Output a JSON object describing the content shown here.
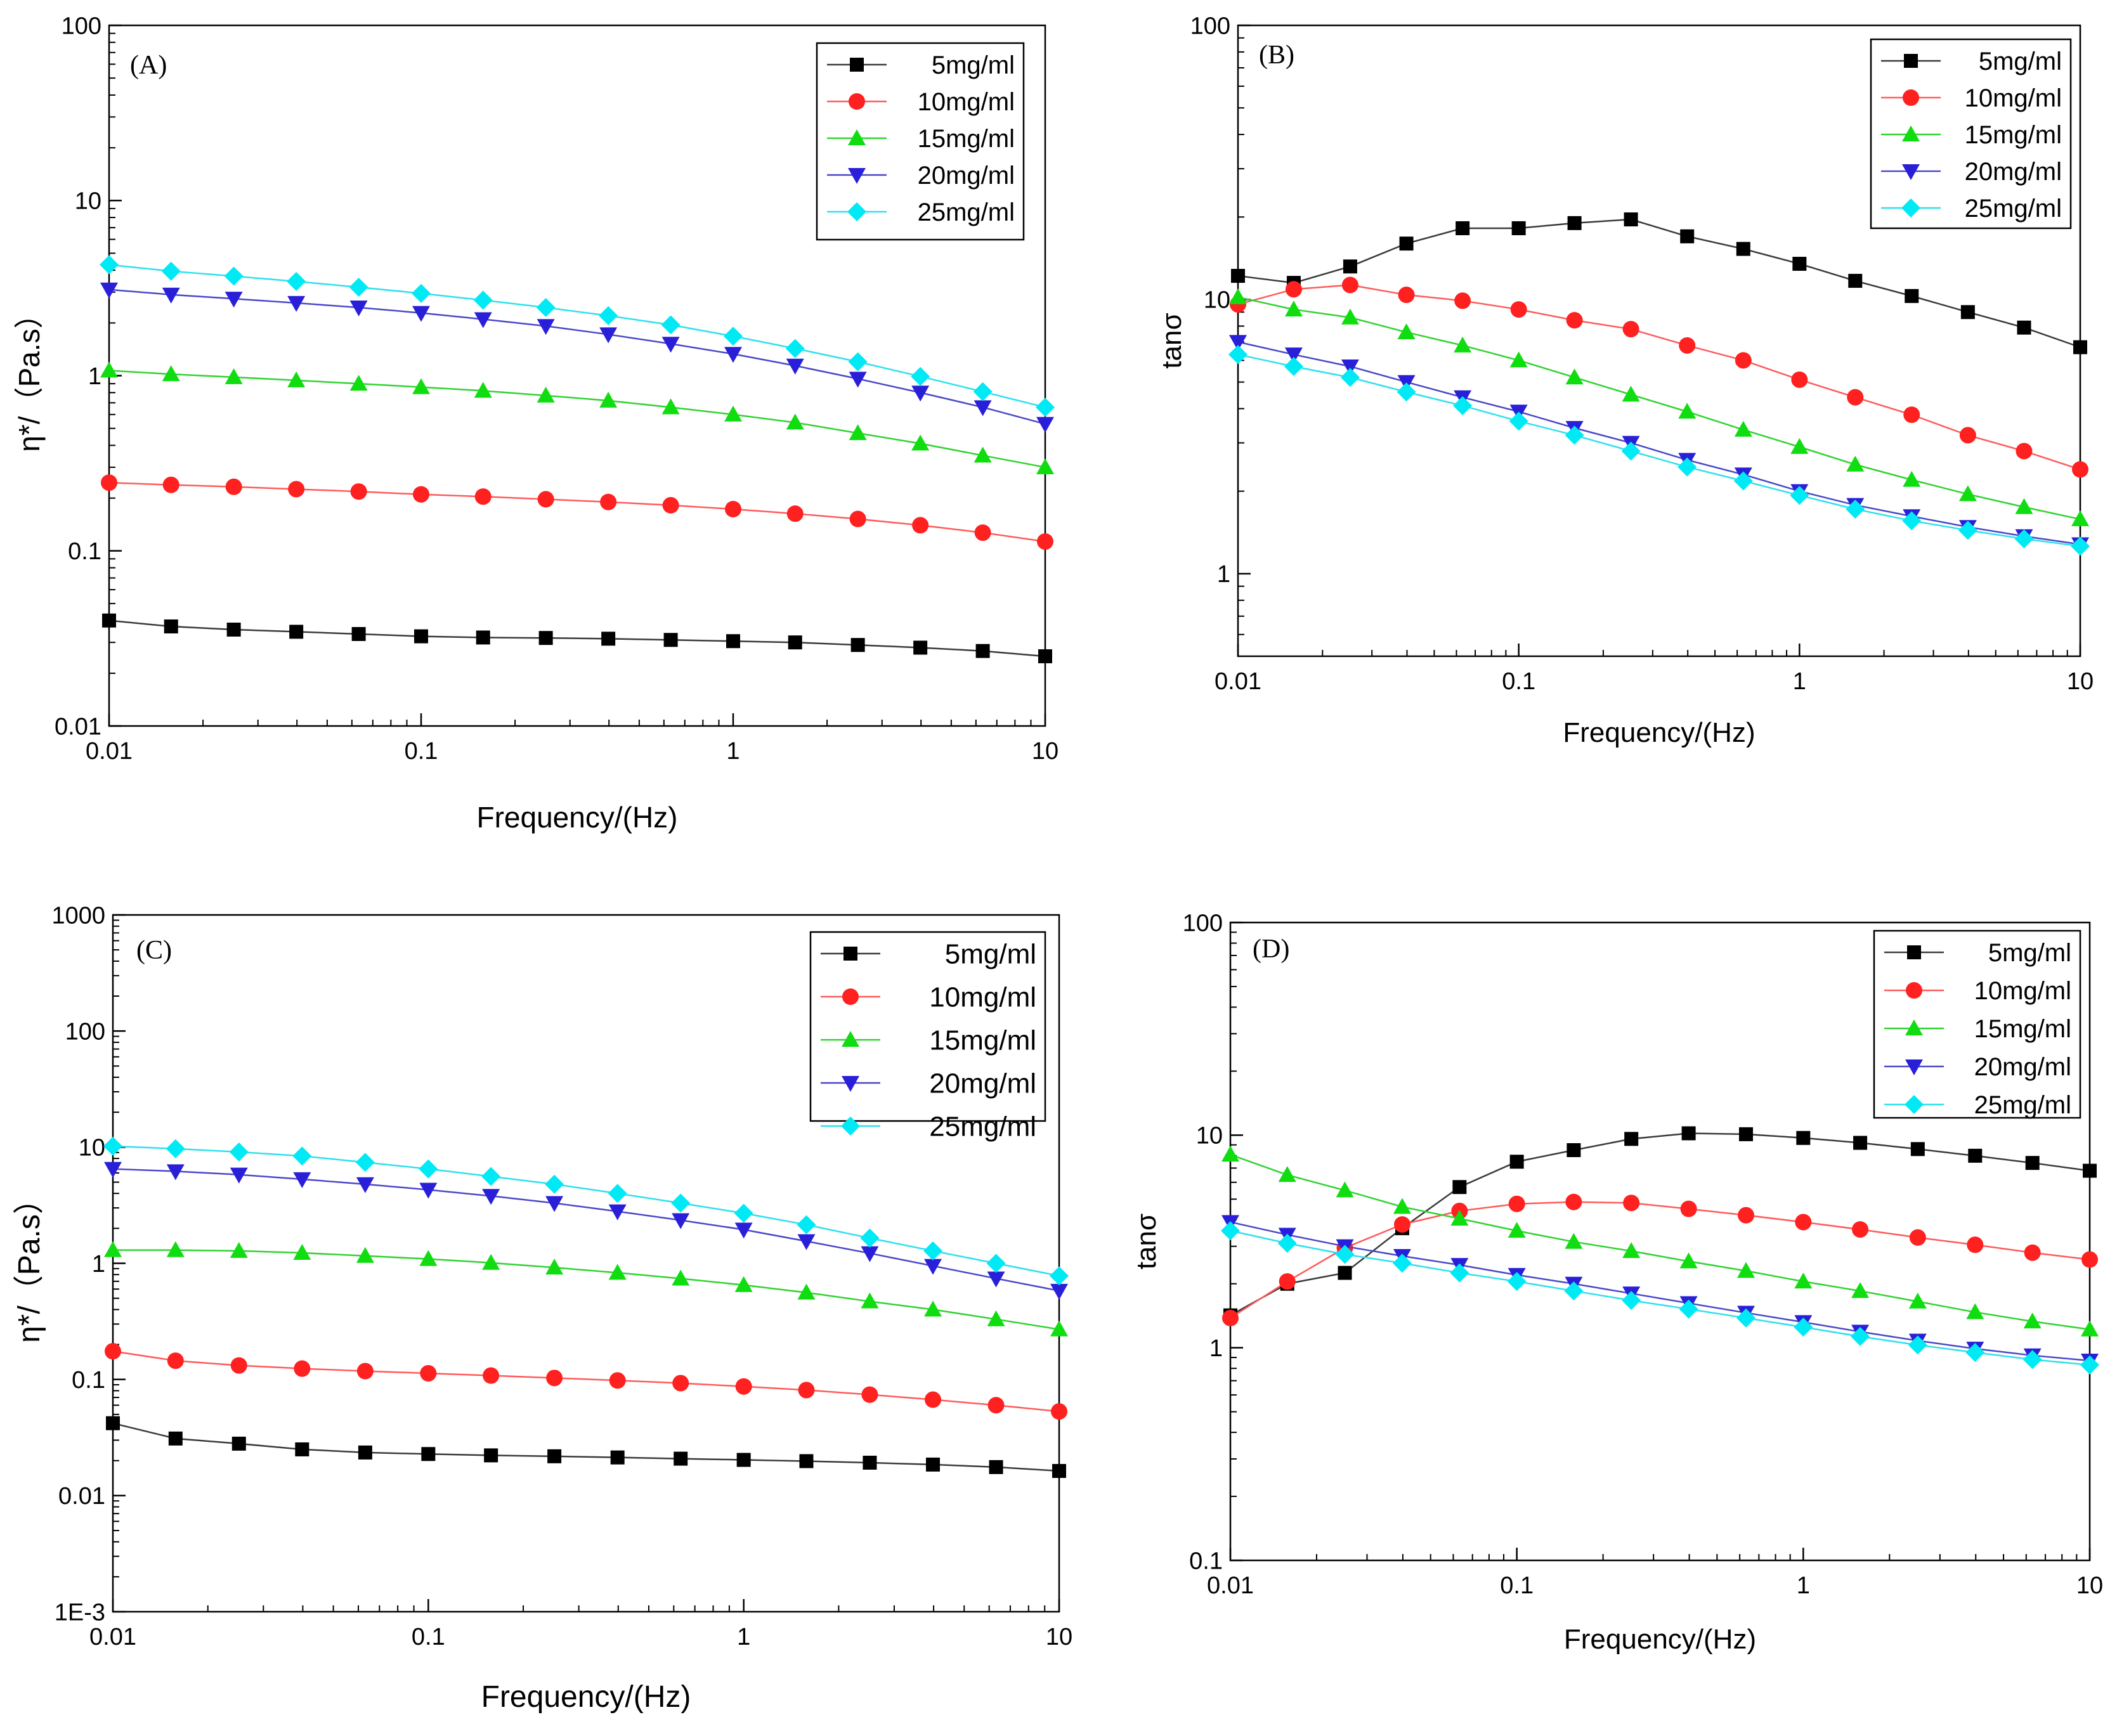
{
  "chart_data": [
    {
      "type": "line",
      "panel_label": "(A)",
      "xscale": "log",
      "yscale": "log",
      "xlabel": "Frequency/(Hz)",
      "ylabel": "η*/（Pa.s）",
      "xlim": [
        0.01,
        10
      ],
      "ylim": [
        0.01,
        100
      ],
      "xticks": [
        0.01,
        0.1,
        1,
        10
      ],
      "xtick_labels": [
        "0.01",
        "0.1",
        "1",
        "10"
      ],
      "yticks": [
        0.01,
        0.1,
        1,
        10,
        100
      ],
      "ytick_labels": [
        "0.01",
        "0.1",
        "1",
        "10",
        "100"
      ],
      "legend": "top-right",
      "x": [
        0.01,
        0.0158,
        0.0251,
        0.0398,
        0.0631,
        0.1,
        0.158,
        0.251,
        0.398,
        0.631,
        1,
        1.58,
        2.51,
        3.98,
        6.31,
        10
      ],
      "series": [
        {
          "name": "5mg/ml",
          "values": [
            0.04,
            0.037,
            0.0355,
            0.0345,
            0.0335,
            0.0325,
            0.032,
            0.0318,
            0.0315,
            0.031,
            0.0305,
            0.03,
            0.029,
            0.028,
            0.0268,
            0.025
          ]
        },
        {
          "name": "10mg/ml",
          "values": [
            0.245,
            0.238,
            0.232,
            0.225,
            0.218,
            0.21,
            0.204,
            0.197,
            0.19,
            0.182,
            0.173,
            0.163,
            0.152,
            0.14,
            0.127,
            0.113
          ]
        },
        {
          "name": "15mg/ml",
          "values": [
            1.07,
            1.02,
            0.98,
            0.94,
            0.9,
            0.86,
            0.82,
            0.77,
            0.72,
            0.66,
            0.6,
            0.54,
            0.47,
            0.41,
            0.35,
            0.3
          ]
        },
        {
          "name": "20mg/ml",
          "values": [
            3.1,
            2.9,
            2.75,
            2.6,
            2.45,
            2.28,
            2.1,
            1.92,
            1.72,
            1.52,
            1.33,
            1.14,
            0.96,
            0.8,
            0.66,
            0.53
          ]
        },
        {
          "name": "25mg/ml",
          "values": [
            4.3,
            3.95,
            3.7,
            3.45,
            3.2,
            2.95,
            2.7,
            2.45,
            2.2,
            1.95,
            1.68,
            1.43,
            1.2,
            0.99,
            0.81,
            0.66
          ]
        }
      ]
    },
    {
      "type": "line",
      "panel_label": "(B)",
      "xscale": "log",
      "yscale": "log",
      "xlabel": "Frequency/(Hz)",
      "ylabel": "tanσ",
      "xlim": [
        0.01,
        10
      ],
      "ylim": [
        0.5,
        100
      ],
      "xticks": [
        0.01,
        0.1,
        1,
        10
      ],
      "xtick_labels": [
        "0.01",
        "0.1",
        "1",
        "10"
      ],
      "yticks": [
        1,
        10,
        100
      ],
      "ytick_labels": [
        "1",
        "10",
        "100"
      ],
      "legend": "top-right",
      "x": [
        0.01,
        0.0158,
        0.0251,
        0.0398,
        0.0631,
        0.1,
        0.158,
        0.251,
        0.398,
        0.631,
        1,
        1.58,
        2.51,
        3.98,
        6.31,
        10
      ],
      "series": [
        {
          "name": "5mg/ml",
          "values": [
            12.2,
            11.5,
            13.2,
            16,
            18.2,
            18.2,
            19,
            19.6,
            17,
            15.3,
            13.5,
            11.7,
            10.3,
            9,
            7.9,
            6.7
          ]
        },
        {
          "name": "10mg/ml",
          "values": [
            9.6,
            10.9,
            11.3,
            10.4,
            9.9,
            9.2,
            8.4,
            7.8,
            6.8,
            6,
            5.1,
            4.4,
            3.8,
            3.2,
            2.8,
            2.4
          ]
        },
        {
          "name": "15mg/ml",
          "values": [
            10.2,
            9.2,
            8.6,
            7.6,
            6.8,
            6,
            5.2,
            4.5,
            3.9,
            3.35,
            2.9,
            2.5,
            2.2,
            1.95,
            1.75,
            1.58
          ]
        },
        {
          "name": "20mg/ml",
          "values": [
            7,
            6.3,
            5.7,
            5,
            4.4,
            3.9,
            3.4,
            3,
            2.6,
            2.3,
            2,
            1.78,
            1.62,
            1.48,
            1.37,
            1.28
          ]
        },
        {
          "name": "25mg/ml",
          "values": [
            6.3,
            5.7,
            5.2,
            4.6,
            4.1,
            3.6,
            3.2,
            2.8,
            2.45,
            2.18,
            1.93,
            1.72,
            1.56,
            1.44,
            1.34,
            1.26
          ]
        }
      ]
    },
    {
      "type": "line",
      "panel_label": "(C)",
      "xscale": "log",
      "yscale": "log",
      "xlabel": "Frequency/(Hz)",
      "ylabel": "η*/（Pa.s）",
      "xlim": [
        0.01,
        10
      ],
      "ylim": [
        0.001,
        1000
      ],
      "xticks": [
        0.01,
        0.1,
        1,
        10
      ],
      "xtick_labels": [
        "0.01",
        "0.1",
        "1",
        "10"
      ],
      "yticks": [
        0.001,
        0.01,
        0.1,
        1,
        10,
        100,
        1000
      ],
      "ytick_labels": [
        "1E-3",
        "0.01",
        "0.1",
        "1",
        "10",
        "100",
        "1000"
      ],
      "legend": "top-right",
      "x": [
        0.01,
        0.0158,
        0.0251,
        0.0398,
        0.0631,
        0.1,
        0.158,
        0.251,
        0.398,
        0.631,
        1,
        1.58,
        2.51,
        3.98,
        6.31,
        10
      ],
      "series": [
        {
          "name": "5mg/ml",
          "values": [
            0.042,
            0.031,
            0.028,
            0.025,
            0.0235,
            0.0228,
            0.0222,
            0.0218,
            0.0213,
            0.0208,
            0.0203,
            0.0198,
            0.0192,
            0.0185,
            0.0176,
            0.0163
          ]
        },
        {
          "name": "10mg/ml",
          "values": [
            0.175,
            0.145,
            0.132,
            0.124,
            0.118,
            0.113,
            0.108,
            0.103,
            0.098,
            0.093,
            0.087,
            0.081,
            0.074,
            0.067,
            0.06,
            0.053
          ]
        },
        {
          "name": "15mg/ml",
          "values": [
            1.3,
            1.3,
            1.28,
            1.23,
            1.16,
            1.09,
            1.01,
            0.92,
            0.83,
            0.74,
            0.65,
            0.56,
            0.47,
            0.4,
            0.33,
            0.27
          ]
        },
        {
          "name": "20mg/ml",
          "values": [
            6.5,
            6.2,
            5.8,
            5.3,
            4.8,
            4.3,
            3.8,
            3.3,
            2.8,
            2.35,
            1.95,
            1.55,
            1.22,
            0.95,
            0.74,
            0.58
          ]
        },
        {
          "name": "25mg/ml",
          "values": [
            10.2,
            9.7,
            9.1,
            8.4,
            7.4,
            6.5,
            5.6,
            4.8,
            4,
            3.3,
            2.7,
            2.15,
            1.65,
            1.28,
            1,
            0.78
          ]
        }
      ]
    },
    {
      "type": "line",
      "panel_label": "(D)",
      "xscale": "log",
      "yscale": "log",
      "xlabel": "Frequency/(Hz)",
      "ylabel": "tanσ",
      "xlim": [
        0.01,
        10
      ],
      "ylim": [
        0.1,
        100
      ],
      "xticks": [
        0.01,
        0.1,
        1,
        10
      ],
      "xtick_labels": [
        "0.01",
        "0.1",
        "1",
        "10"
      ],
      "yticks": [
        0.1,
        1,
        10,
        100
      ],
      "ytick_labels": [
        "0.1",
        "1",
        "10",
        "100"
      ],
      "legend": "top-right",
      "x": [
        0.01,
        0.0158,
        0.0251,
        0.0398,
        0.0631,
        0.1,
        0.158,
        0.251,
        0.398,
        0.631,
        1,
        1.58,
        2.51,
        3.98,
        6.31,
        10
      ],
      "series": [
        {
          "name": "5mg/ml",
          "values": [
            1.42,
            2,
            2.25,
            3.65,
            5.7,
            7.5,
            8.5,
            9.6,
            10.2,
            10.1,
            9.7,
            9.2,
            8.6,
            8,
            7.4,
            6.8
          ]
        },
        {
          "name": "10mg/ml",
          "values": [
            1.38,
            2.05,
            2.95,
            3.8,
            4.4,
            4.75,
            4.85,
            4.8,
            4.5,
            4.2,
            3.9,
            3.6,
            3.3,
            3.05,
            2.8,
            2.6
          ]
        },
        {
          "name": "15mg/ml",
          "values": [
            8.1,
            6.5,
            5.5,
            4.6,
            4.05,
            3.55,
            3.15,
            2.85,
            2.55,
            2.3,
            2.05,
            1.85,
            1.65,
            1.47,
            1.33,
            1.22
          ]
        },
        {
          "name": "20mg/ml",
          "values": [
            3.9,
            3.4,
            3,
            2.7,
            2.45,
            2.2,
            2,
            1.8,
            1.62,
            1.46,
            1.32,
            1.19,
            1.08,
            0.99,
            0.92,
            0.87
          ]
        },
        {
          "name": "25mg/ml",
          "values": [
            3.55,
            3.1,
            2.75,
            2.5,
            2.25,
            2.05,
            1.85,
            1.67,
            1.52,
            1.38,
            1.25,
            1.13,
            1.03,
            0.95,
            0.88,
            0.83
          ]
        }
      ]
    }
  ],
  "series_style": {
    "line_colors": [
      "#3a3a3a",
      "#ff5a5a",
      "#30d330",
      "#4a48c8",
      "#2ee0ee"
    ],
    "marker_colors": [
      "#000000",
      "#ff2020",
      "#10dd10",
      "#2a1fd8",
      "#00eaf5"
    ],
    "markers": [
      "square",
      "circle",
      "triangle-up",
      "triangle-down",
      "diamond"
    ]
  }
}
